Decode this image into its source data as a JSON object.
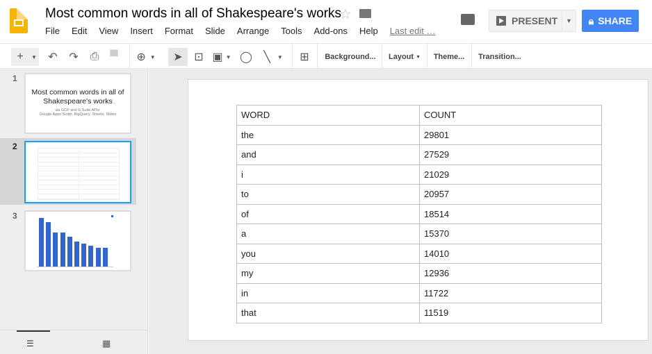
{
  "app": {
    "title": "Most common words in all of Shakespeare's works",
    "menu": [
      "File",
      "Edit",
      "View",
      "Insert",
      "Format",
      "Slide",
      "Arrange",
      "Tools",
      "Add-ons",
      "Help"
    ],
    "last_edit": "Last edit …",
    "present_label": "PRESENT",
    "share_label": "SHARE",
    "accent": "#4285f4"
  },
  "toolbar": {
    "background": "Background...",
    "layout": "Layout",
    "theme": "Theme...",
    "transition": "Transition..."
  },
  "slides": [
    {
      "number": "1",
      "title": "Most common words in all of Shakespeare's works",
      "subtitle1": "via GCP and G Suite APIs:",
      "subtitle2": "Google Apps Script, BigQuery, Sheets, Slides"
    },
    {
      "number": "2",
      "selected": true
    },
    {
      "number": "3"
    }
  ],
  "table": {
    "headers": [
      "WORD",
      "COUNT"
    ],
    "rows": [
      [
        "the",
        "29801"
      ],
      [
        "and",
        "27529"
      ],
      [
        "i",
        "21029"
      ],
      [
        "to",
        "20957"
      ],
      [
        "of",
        "18514"
      ],
      [
        "a",
        "15370"
      ],
      [
        "you",
        "14010"
      ],
      [
        "my",
        "12936"
      ],
      [
        "in",
        "11722"
      ],
      [
        "that",
        "11519"
      ]
    ]
  }
}
